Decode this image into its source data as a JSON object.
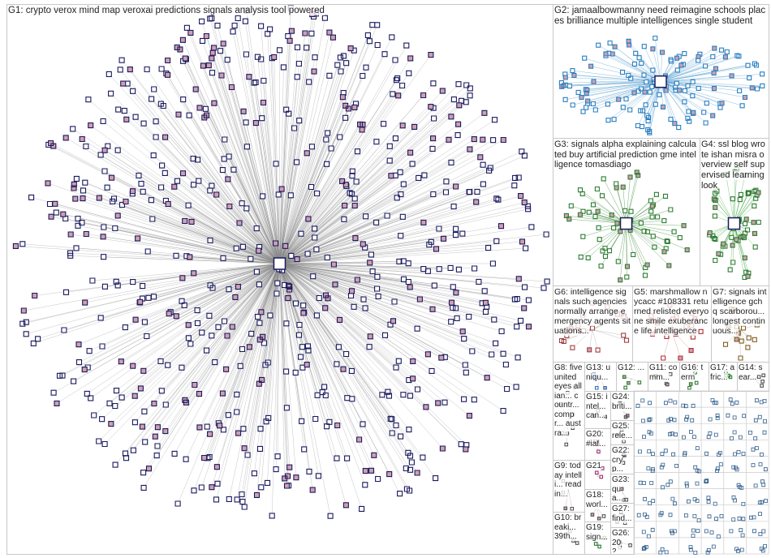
{
  "groups": [
    {
      "label": "G1: crypto verox mind map veroxai predictions signals analysis tool powered"
    },
    {
      "label": "G2: jamaalbowmanny need reimagine schools places brilliance multiple intelligences single student"
    },
    {
      "label": "G3: signals alpha explaining calculated buy artificial prediction gme intelligence tomasdiago"
    },
    {
      "label": "G4: ssl blog wrote ishan misra overview self supervised learning look"
    },
    {
      "label": "G6: intelligence signals such agencies normally arrange emergency agents situations..."
    },
    {
      "label": "G5: marshmallow nycacc #108331 returned relisted everyone smile exuberance life intelligence"
    },
    {
      "label": "G7: signals intelligence gchq scarborou... longest continuous..."
    },
    {
      "label": "G8: five united eyes allian... countr... compr... austra..."
    },
    {
      "label": "G13: uniqu..."
    },
    {
      "label": "G12: ..."
    },
    {
      "label": "G11: comm..."
    },
    {
      "label": "G16: term"
    },
    {
      "label": "G17: afric..."
    },
    {
      "label": "G14: sear..."
    },
    {
      "label": "G15: intel... can..."
    },
    {
      "label": "G24: briti..."
    },
    {
      "label": "G20: #iaf..."
    },
    {
      "label": "G25: rele..."
    },
    {
      "label": "G22: cryp..."
    },
    {
      "label": "G23: qua..."
    },
    {
      "label": "G27: find..."
    },
    {
      "label": "G26: 202..."
    },
    {
      "label": "G9: today intelli... readin..."
    },
    {
      "label": "G10: breaki... 39th..."
    },
    {
      "label": "G21"
    },
    {
      "label": "G18: worl..."
    },
    {
      "label": "G19: sign..."
    }
  ]
}
